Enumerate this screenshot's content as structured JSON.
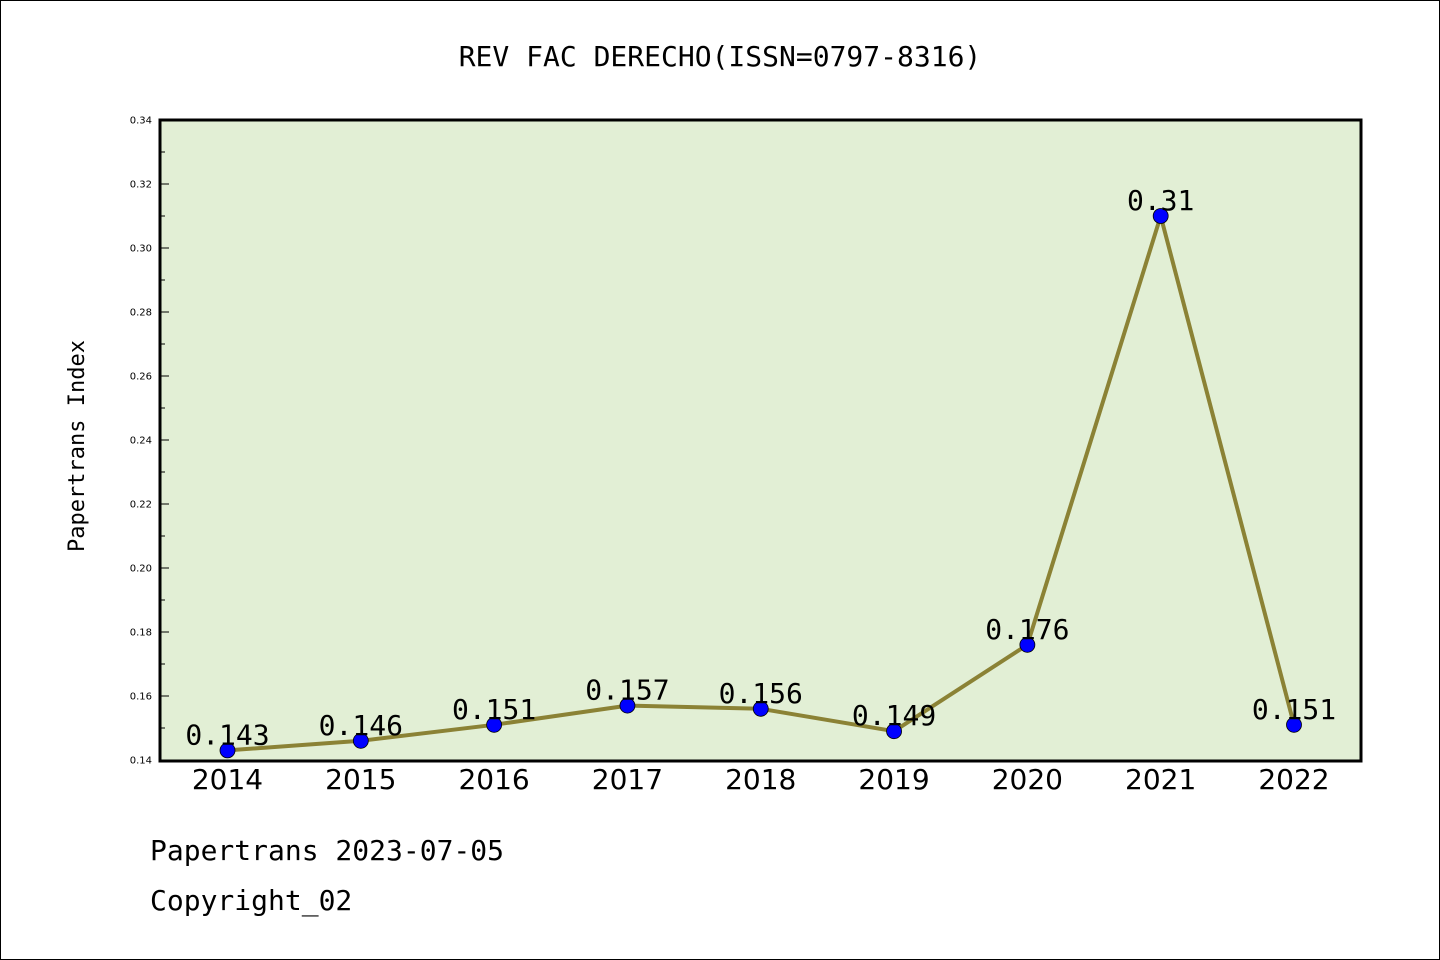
{
  "chart_data": {
    "type": "line",
    "title": "REV FAC DERECHO(ISSN=0797-8316)",
    "xlabel": "",
    "ylabel": "Papertrans Index",
    "categories": [
      "2014",
      "2015",
      "2016",
      "2017",
      "2018",
      "2019",
      "2020",
      "2021",
      "2022"
    ],
    "series": [
      {
        "values": [
          0.143,
          0.146,
          0.151,
          0.157,
          0.156,
          0.149,
          0.176,
          0.31,
          0.151
        ],
        "labels": [
          "0.143",
          "0.146",
          "0.151",
          "0.157",
          "0.156",
          "0.149",
          "0.176",
          "0.31",
          "0.151"
        ]
      }
    ],
    "ylim": [
      0.14,
      0.34
    ],
    "yticks": [
      "0.14",
      "0.16",
      "0.18",
      "0.20",
      "0.22",
      "0.24",
      "0.26",
      "0.28",
      "0.30",
      "0.32",
      "0.34"
    ],
    "grid": false,
    "colors": {
      "plot_background": "#e2efd5",
      "line": "#8b8235",
      "marker": "#0000ff"
    }
  },
  "footer": {
    "source": "Papertrans 2023-07-05",
    "copyright": "Copyright_02"
  }
}
